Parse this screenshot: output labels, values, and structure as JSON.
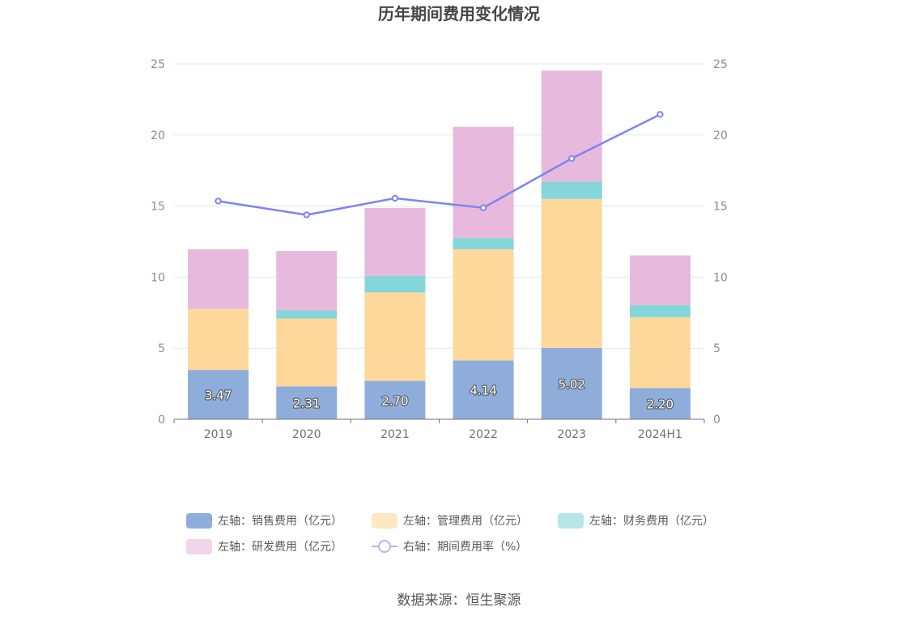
{
  "chart_data": {
    "type": "bar",
    "stacked": true,
    "title": "历年期间费用变化情况",
    "categories": [
      "2019",
      "2020",
      "2021",
      "2022",
      "2023",
      "2024H1"
    ],
    "left_axis": {
      "min": 0,
      "max": 25,
      "ticks": [
        "0",
        "5",
        "10",
        "15",
        "20",
        "25"
      ]
    },
    "right_axis": {
      "min": 0,
      "max": 25,
      "ticks": [
        "0",
        "5",
        "10",
        "15",
        "20",
        "25"
      ]
    },
    "grid": true,
    "series": [
      {
        "name": "左轴：销售费用（亿元）",
        "axis": "left",
        "type": "bar",
        "color": "#8eaddb",
        "values": [
          3.47,
          2.31,
          2.7,
          4.14,
          5.02,
          2.2
        ],
        "labels": [
          "3.47",
          "2.31",
          "2.70",
          "4.14",
          "5.02",
          "2.20"
        ]
      },
      {
        "name": "左轴：管理费用（亿元）",
        "axis": "left",
        "type": "bar",
        "color": "#fed89b",
        "values": [
          4.3,
          4.78,
          6.22,
          7.82,
          10.48,
          4.98
        ]
      },
      {
        "name": "左轴：财务费用（亿元）",
        "axis": "left",
        "type": "bar",
        "color": "#85d6da",
        "values": [
          0.0,
          0.57,
          1.18,
          0.79,
          1.21,
          0.85
        ]
      },
      {
        "name": "左轴：研发费用（亿元）",
        "axis": "left",
        "type": "bar",
        "color": "#e7b9dc",
        "values": [
          4.19,
          4.18,
          4.76,
          7.83,
          7.82,
          3.5
        ]
      },
      {
        "name": "右轴：期间费用率（%）",
        "axis": "right",
        "type": "line",
        "color": "#7e84f1",
        "values": [
          15.35,
          14.38,
          15.55,
          14.88,
          18.35,
          21.45
        ]
      }
    ],
    "legend_position": "bottom"
  },
  "source": "数据来源：恒生聚源"
}
